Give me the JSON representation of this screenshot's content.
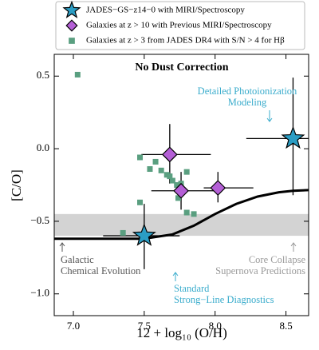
{
  "chart_data": {
    "type": "scatter",
    "title": "No Dust Correction",
    "xlabel": "12 + log₁₀ (O/H)",
    "ylabel": "[C/O]",
    "xlim": [
      6.865,
      8.66
    ],
    "ylim": [
      -1.15,
      0.65
    ],
    "xticks": [
      {
        "value": 7,
        "label": "7.0"
      },
      7.5,
      {
        "value": 8,
        "label": "8.0"
      },
      8.5
    ],
    "yticks": [
      0.5,
      {
        "value": 0,
        "label": "0.0"
      },
      {
        "value": -0.5,
        "label": "−0.5"
      },
      {
        "value": -1,
        "label": "−1.0"
      }
    ],
    "shaded_range": [
      -0.6,
      -0.45
    ],
    "shade_color": "#d3d3d3",
    "series": [
      {
        "name": "JADES−GS−z14−0 with MIRI/Spectroscopy",
        "marker": "star",
        "color": "#2b9dc4",
        "x": [
          8.55,
          7.5
        ],
        "values": [
          0.07,
          -0.6
        ],
        "xerr_low": [
          0.33,
          0.29
        ],
        "xerr_high": [
          0.2,
          0.25
        ],
        "yerr_low": [
          0.39,
          0.23
        ],
        "yerr_high": [
          0.42,
          0.22
        ]
      },
      {
        "name": "Galaxies at z > 10 with Previous MIRI/Spectroscopy",
        "marker": "diamond",
        "color": "#b45fd6",
        "x": [
          7.68,
          7.76,
          8.02
        ],
        "values": [
          -0.04,
          -0.29,
          -0.27
        ],
        "xerr_low": [
          0.2,
          0.21,
          0.1
        ],
        "xerr_high": [
          0.29,
          0.27,
          0.25
        ],
        "yerr_low": [
          0.2,
          0.13,
          0.1
        ],
        "yerr_high": [
          0.21,
          0.13,
          0.11
        ]
      },
      {
        "name": "Galaxies at z > 3 from JADES DR4 with S/N > 4 for Hβ",
        "marker": "square",
        "color": "#5a9f80",
        "x": [
          7.03,
          7.47,
          7.54,
          7.58,
          7.62,
          7.66,
          7.68,
          7.7,
          7.74,
          7.73,
          7.76,
          7.8,
          7.8,
          7.85,
          7.47,
          7.35
        ],
        "values": [
          0.51,
          -0.06,
          -0.14,
          -0.09,
          -0.15,
          -0.18,
          -0.19,
          -0.22,
          -0.34,
          -0.25,
          -0.24,
          -0.16,
          -0.44,
          -0.45,
          -0.37,
          -0.58
        ]
      },
      {
        "marker": "line",
        "color": "#000000",
        "x": [
          6.865,
          7.2,
          7.5,
          7.7,
          7.85,
          8.0,
          8.15,
          8.3,
          8.45,
          8.55,
          8.66
        ],
        "values": [
          -0.62,
          -0.62,
          -0.62,
          -0.59,
          -0.53,
          -0.45,
          -0.38,
          -0.33,
          -0.3,
          -0.29,
          -0.285
        ]
      }
    ],
    "annotations": [
      {
        "lines": [
          "Detailed Photoionization",
          "Modeling"
        ],
        "color": "#3aaccc",
        "arrow": "down"
      },
      {
        "lines": [
          "Galactic",
          "Chemical Evolution"
        ],
        "color": "#555555",
        "arrow": "up"
      },
      {
        "lines": [
          "Core Collapse",
          "Supernova Predictions"
        ],
        "color": "#9a9a9a",
        "arrow": "up"
      },
      {
        "lines": [
          "Standard",
          "Strong−Line Diagnostics"
        ],
        "color": "#3aaccc",
        "arrow": "up"
      }
    ]
  }
}
